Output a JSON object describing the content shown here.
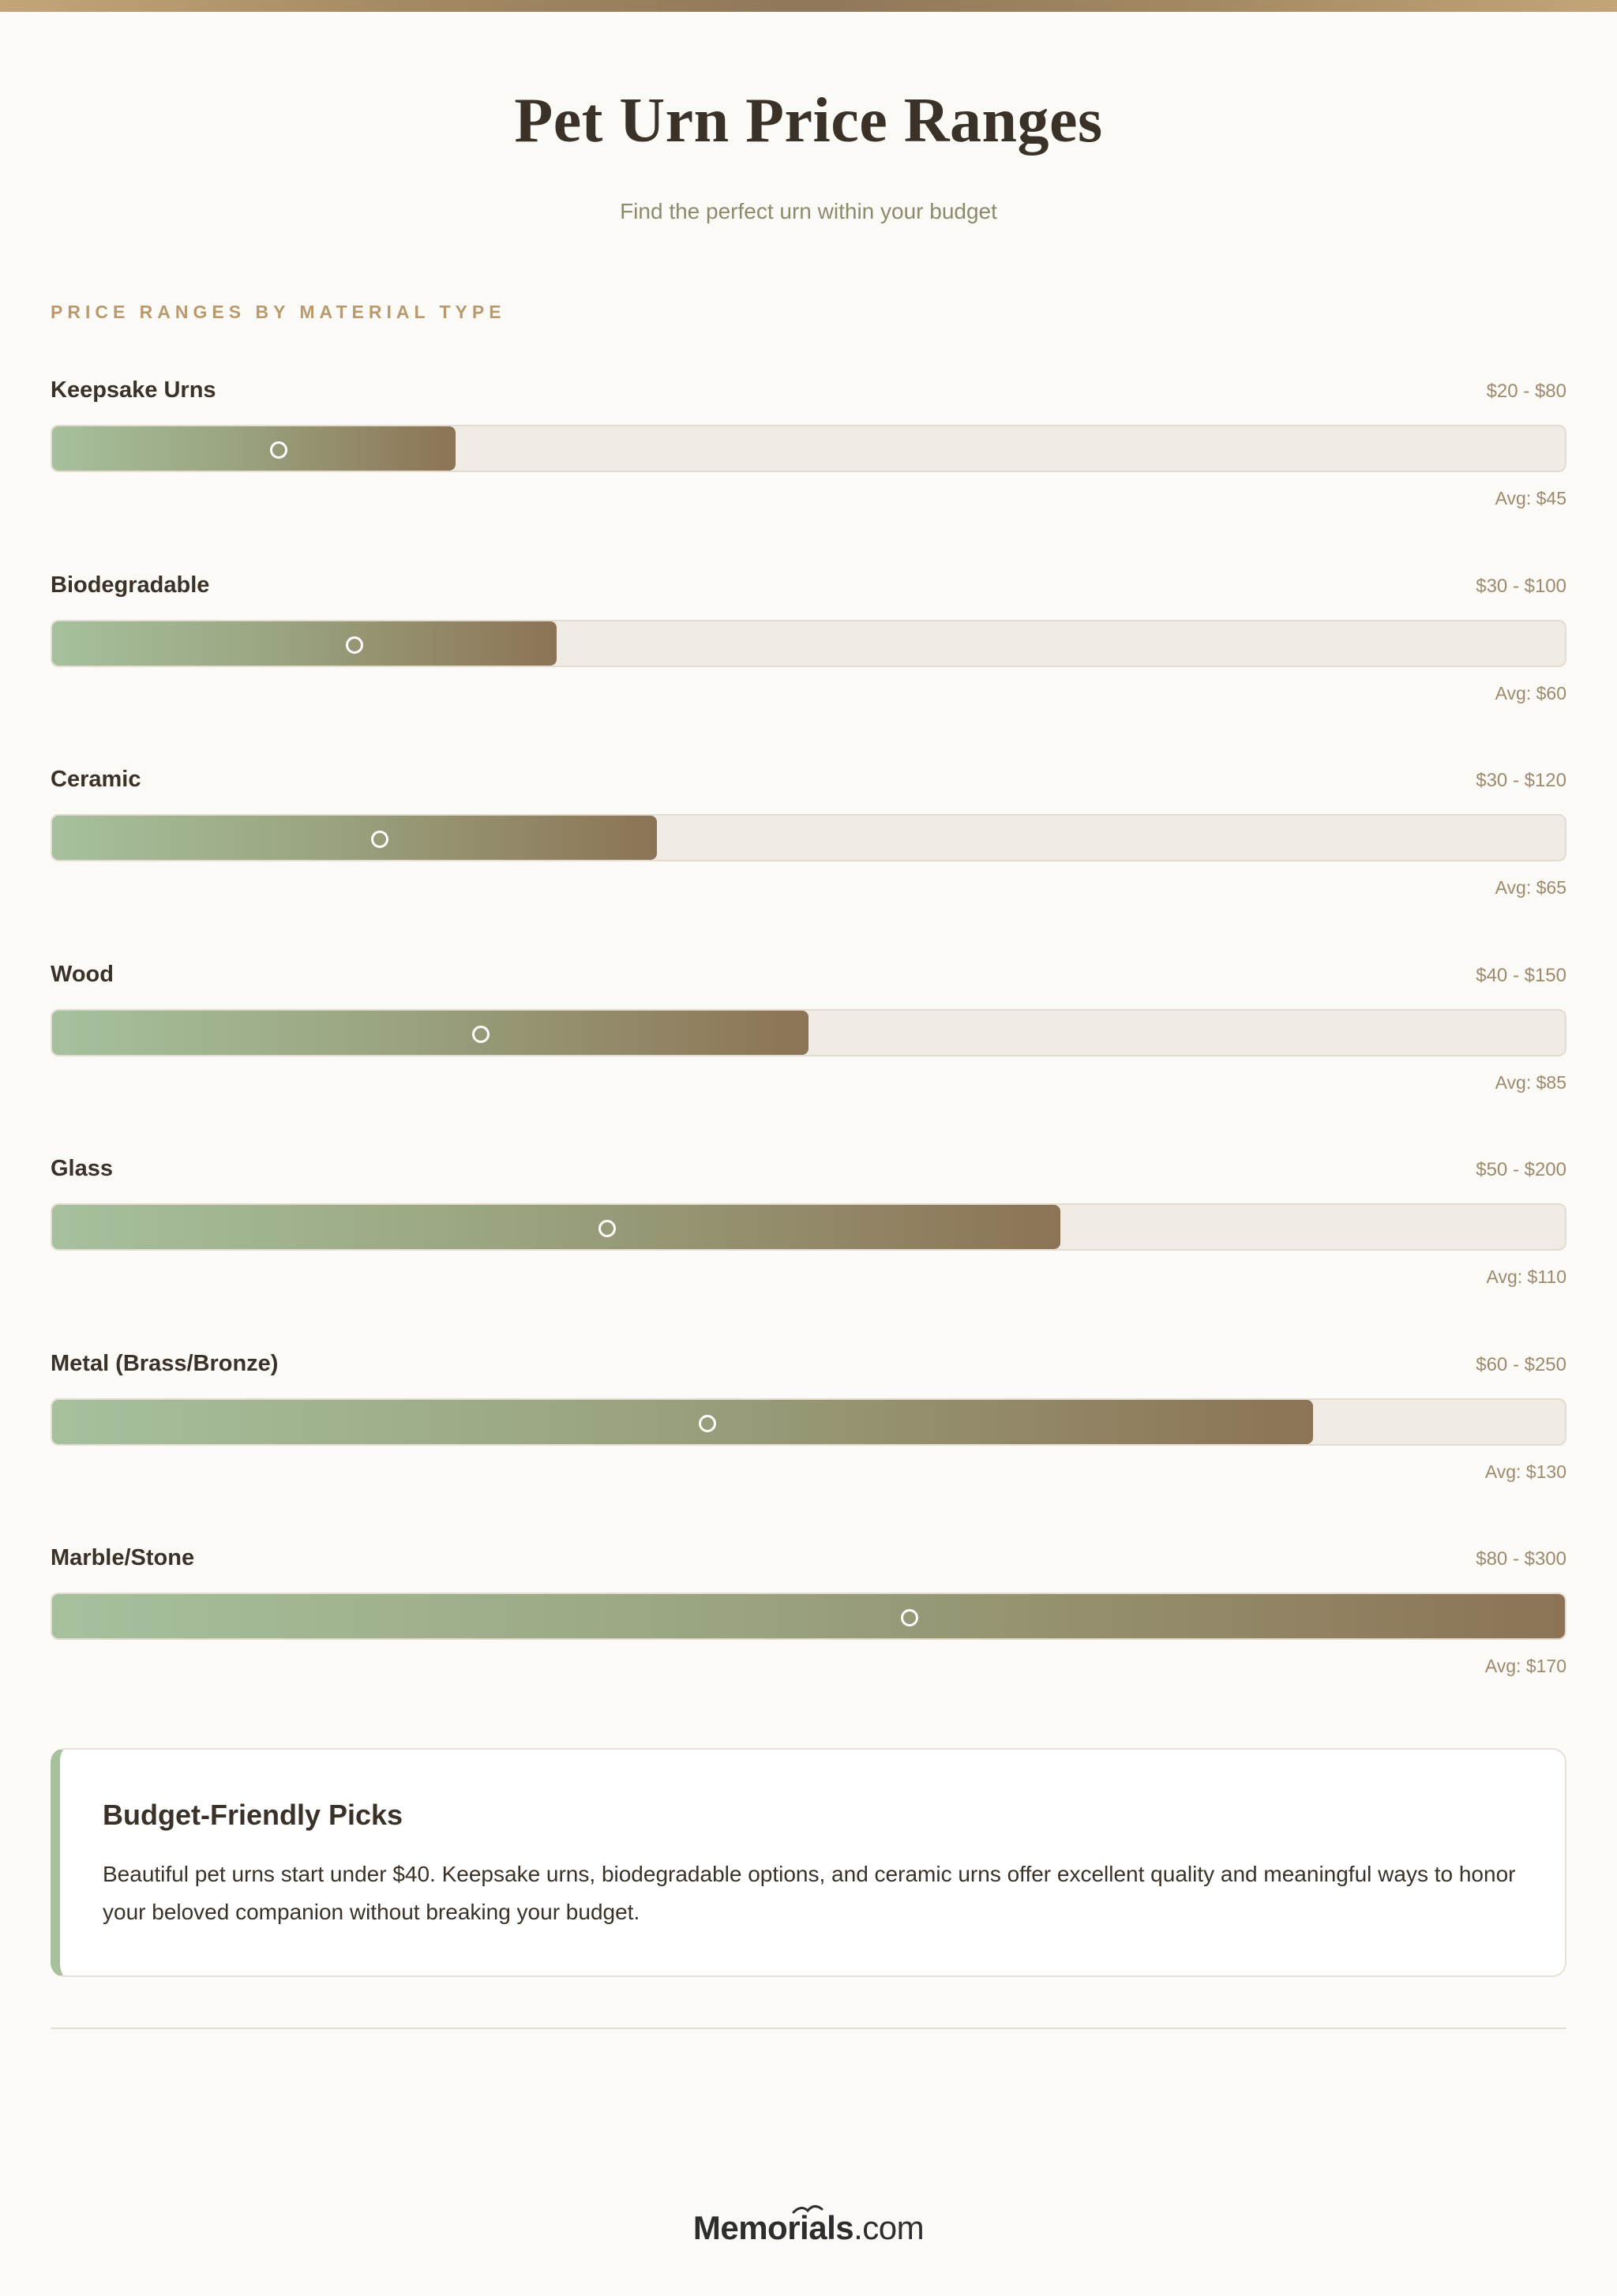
{
  "header": {
    "title": "Pet Urn Price Ranges",
    "subtitle": "Find the perfect urn within your budget"
  },
  "section_label": "Price Ranges by Material Type",
  "colors": {
    "fill_start": "#a6c09d",
    "fill_end": "#8c7355",
    "track": "#f0ebe4",
    "accent": "#b99a6e"
  },
  "chart_data": {
    "type": "bar",
    "orientation": "horizontal",
    "categories": [
      "Keepsake Urns",
      "Biodegradable",
      "Ceramic",
      "Wood",
      "Glass",
      "Metal (Brass/Bronze)",
      "Marble/Stone"
    ],
    "series": [
      {
        "name": "min",
        "values": [
          20,
          30,
          30,
          40,
          50,
          60,
          80
        ]
      },
      {
        "name": "max",
        "values": [
          80,
          100,
          120,
          150,
          200,
          250,
          300
        ]
      },
      {
        "name": "avg",
        "values": [
          45,
          60,
          65,
          85,
          110,
          130,
          170
        ]
      }
    ],
    "xlim": [
      0,
      300
    ],
    "range_labels": [
      "$20 - $80",
      "$30 - $100",
      "$30 - $120",
      "$40 - $150",
      "$50 - $200",
      "$60 - $250",
      "$80 - $300"
    ],
    "avg_labels": [
      "Avg: $45",
      "Avg: $60",
      "Avg: $65",
      "Avg: $85",
      "Avg: $110",
      "Avg: $130",
      "Avg: $170"
    ]
  },
  "callout": {
    "title": "Budget-Friendly Picks",
    "body": "Beautiful pet urns start under $40. Keepsake urns, biodegradable options, and ceramic urns offer excellent quality and meaningful ways to honor your beloved companion without breaking your budget."
  },
  "footer": {
    "logo_main": "Memorials",
    "logo_suffix": ".com",
    "logo_mark": "bird-logo-icon"
  }
}
